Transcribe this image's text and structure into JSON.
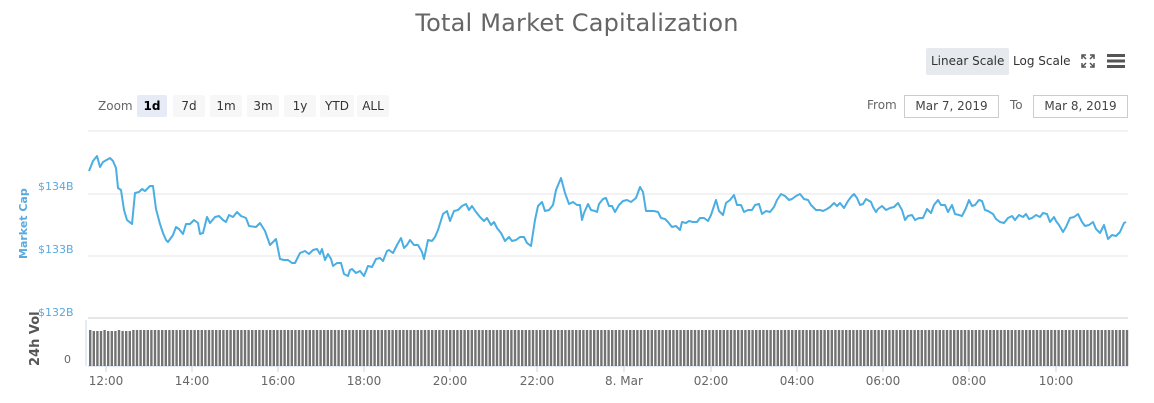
{
  "title": "Total Market Capitalization",
  "toolbar": {
    "linear_scale": "Linear Scale",
    "log_scale": "Log Scale",
    "fullscreen_icon": "fullscreen-icon",
    "menu_icon": "hamburger-menu-icon"
  },
  "range_selector": {
    "zoom_label": "Zoom",
    "buttons": [
      "1d",
      "7d",
      "1m",
      "3m",
      "1y",
      "YTD",
      "ALL"
    ],
    "selected": "1d",
    "from_label": "From",
    "from_value": "Mar 7, 2019",
    "to_label": "To",
    "to_value": "Mar 8, 2019"
  },
  "axes": {
    "market_cap_title": "Market Cap",
    "volume_title": "24h Vol",
    "y_ticks": [
      "$134B",
      "$133B",
      "$132B"
    ],
    "vol_ticks": [
      "0"
    ],
    "x_ticks": [
      "12:00",
      "14:00",
      "16:00",
      "18:00",
      "20:00",
      "22:00",
      "8. Mar",
      "02:00",
      "04:00",
      "06:00",
      "08:00",
      "10:00"
    ]
  },
  "colors": {
    "line": "#4aaee3",
    "volume_bars": "#737373",
    "grid": "#e6e6e6",
    "axis_label": "#5aa9dd"
  },
  "chart_data": [
    {
      "type": "line",
      "title": "Total Market Capitalization",
      "xlabel": "",
      "ylabel": "Market Cap",
      "x_range": [
        "Mar 7, 2019 11:30",
        "Mar 8, 2019 11:35"
      ],
      "ylim": [
        132,
        135
      ],
      "y_unit": "USD billions",
      "grid": true,
      "legend": null,
      "categories": [
        "11:30",
        "12:00",
        "12:30",
        "13:00",
        "13:30",
        "14:00",
        "14:30",
        "15:00",
        "15:30",
        "16:00",
        "16:30",
        "17:00",
        "17:30",
        "18:00",
        "18:30",
        "19:00",
        "19:30",
        "20:00",
        "20:30",
        "21:00",
        "21:30",
        "22:00",
        "22:30",
        "23:00",
        "23:30",
        "00:00",
        "00:30",
        "01:00",
        "01:30",
        "02:00",
        "02:30",
        "03:00",
        "03:30",
        "04:00",
        "04:30",
        "05:00",
        "05:30",
        "06:00",
        "06:30",
        "07:00",
        "07:30",
        "08:00",
        "08:30",
        "09:00",
        "09:30",
        "10:00",
        "10:30",
        "11:00",
        "11:30"
      ],
      "values": [
        134.35,
        134.55,
        134.1,
        133.4,
        133.3,
        133.55,
        133.65,
        133.55,
        133.4,
        133.1,
        133.0,
        132.95,
        132.8,
        132.85,
        133.1,
        133.2,
        133.2,
        133.7,
        133.75,
        133.6,
        133.4,
        133.35,
        134.1,
        133.85,
        133.8,
        133.8,
        133.95,
        133.65,
        133.65,
        133.7,
        133.8,
        133.85,
        133.75,
        133.95,
        133.85,
        133.95,
        133.75,
        133.75,
        133.45,
        133.55,
        133.45,
        133.6,
        133.5,
        133.4,
        133.5,
        133.4,
        133.1,
        133.2,
        133.5
      ],
      "volume_series": {
        "name": "24h Vol",
        "note": "roughly constant bar heights across the day"
      }
    }
  ]
}
